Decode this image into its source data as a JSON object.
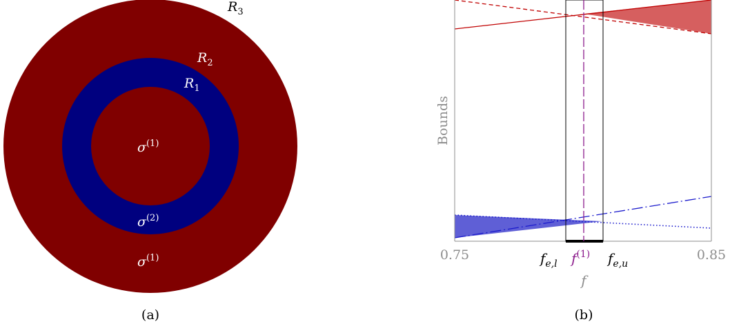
{
  "colors": {
    "outer": "#800000",
    "ring": "#00007f",
    "red_line": "#c00000",
    "red_fill": "#d65f5f",
    "blue_line": "#1a1acc",
    "blue_fill": "#5f5fd6",
    "purple": "#8b1a8b",
    "gray_text": "#8c8c8c",
    "black": "#000000",
    "white_text": "#ffffff"
  },
  "panel_a": {
    "caption": "(a)",
    "labels": {
      "r3": "R",
      "r3_sub": "3",
      "r2": "R",
      "r2_sub": "2",
      "r1": "R",
      "r1_sub": "1",
      "sigma_inner": "σ",
      "sigma_inner_sup": "(1)",
      "sigma_ring": "σ",
      "sigma_ring_sup": "(2)",
      "sigma_outer": "σ",
      "sigma_outer_sup": "(1)"
    }
  },
  "panel_b": {
    "caption": "(b)",
    "ylabel": "Bounds",
    "xlabel": "f",
    "tick_left": "0.75",
    "tick_right": "0.85",
    "f_el": "f",
    "f_el_sub": "e,l",
    "f1": "f",
    "f1_sup": "(1)",
    "f_eu": "f",
    "f_eu_sub": "e,u"
  }
}
